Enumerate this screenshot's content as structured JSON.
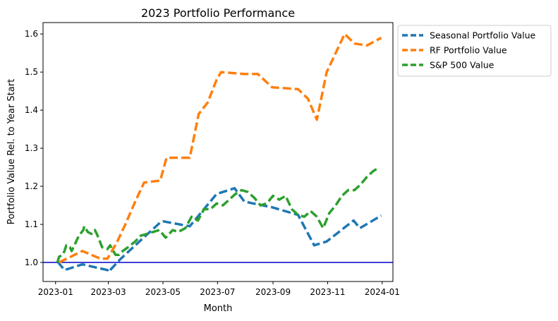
{
  "chart_data": {
    "type": "line",
    "title": "2023 Portfolio Performance",
    "xlabel": "Month",
    "ylabel": "Portfolio Value Rel. to Year Start",
    "x_ticks": [
      "2023-01",
      "2023-03",
      "2023-05",
      "2023-07",
      "2023-09",
      "2023-11",
      "2024-01"
    ],
    "y_ticks": [
      "1.0",
      "1.1",
      "1.2",
      "1.3",
      "1.4",
      "1.5",
      "1.6"
    ],
    "ylim": [
      0.95,
      1.63
    ],
    "xlim": [
      "2022-12-18",
      "2024-01-13"
    ],
    "baseline": {
      "y": 1.0,
      "color": "#0000cc"
    },
    "legend_position": "outside top-right",
    "grid": false,
    "series": [
      {
        "name": "Seasonal Portfolio Value",
        "color": "#1f77b4",
        "style": "dashed",
        "points": [
          [
            "2023-01-03",
            1.0
          ],
          [
            "2023-01-04",
            1.0
          ],
          [
            "2023-01-11",
            0.98
          ],
          [
            "2023-01-31",
            0.995
          ],
          [
            "2023-02-28",
            0.98
          ],
          [
            "2023-03-01",
            0.975
          ],
          [
            "2023-03-15",
            1.01
          ],
          [
            "2023-03-31",
            1.045
          ],
          [
            "2023-04-28",
            1.105
          ],
          [
            "2023-05-01",
            1.108
          ],
          [
            "2023-05-31",
            1.095
          ],
          [
            "2023-06-30",
            1.18
          ],
          [
            "2023-07-20",
            1.195
          ],
          [
            "2023-07-31",
            1.16
          ],
          [
            "2023-08-10",
            1.155
          ],
          [
            "2023-08-31",
            1.145
          ],
          [
            "2023-09-29",
            1.125
          ],
          [
            "2023-10-17",
            1.045
          ],
          [
            "2023-10-31",
            1.055
          ],
          [
            "2023-11-30",
            1.11
          ],
          [
            "2023-12-07",
            1.09
          ],
          [
            "2023-12-31",
            1.123
          ]
        ]
      },
      {
        "name": "RF Portfolio Value",
        "color": "#ff7f0e",
        "style": "dashed",
        "points": [
          [
            "2023-01-05",
            1.0
          ],
          [
            "2023-01-31",
            1.03
          ],
          [
            "2023-02-20",
            1.01
          ],
          [
            "2023-02-28",
            1.01
          ],
          [
            "2023-03-10",
            1.05
          ],
          [
            "2023-03-20",
            1.1
          ],
          [
            "2023-03-31",
            1.16
          ],
          [
            "2023-04-10",
            1.21
          ],
          [
            "2023-04-28",
            1.215
          ],
          [
            "2023-05-05",
            1.275
          ],
          [
            "2023-05-31",
            1.275
          ],
          [
            "2023-06-10",
            1.39
          ],
          [
            "2023-06-20",
            1.42
          ],
          [
            "2023-06-30",
            1.48
          ],
          [
            "2023-07-05",
            1.5
          ],
          [
            "2023-07-31",
            1.495
          ],
          [
            "2023-08-15",
            1.495
          ],
          [
            "2023-08-31",
            1.46
          ],
          [
            "2023-09-29",
            1.455
          ],
          [
            "2023-10-10",
            1.43
          ],
          [
            "2023-10-20",
            1.375
          ],
          [
            "2023-10-31",
            1.5
          ],
          [
            "2023-11-20",
            1.6
          ],
          [
            "2023-12-01",
            1.575
          ],
          [
            "2023-12-15",
            1.57
          ],
          [
            "2023-12-31",
            1.59
          ]
        ]
      },
      {
        "name": "S&P 500 Value",
        "color": "#2ca02c",
        "style": "dashed",
        "points": [
          [
            "2023-01-03",
            1.0
          ],
          [
            "2023-01-05",
            1.015
          ],
          [
            "2023-01-09",
            1.02
          ],
          [
            "2023-01-11",
            1.03
          ],
          [
            "2023-01-13",
            1.045
          ],
          [
            "2023-01-17",
            1.04
          ],
          [
            "2023-01-19",
            1.03
          ],
          [
            "2023-01-23",
            1.05
          ],
          [
            "2023-01-27",
            1.07
          ],
          [
            "2023-02-01",
            1.085
          ],
          [
            "2023-02-02",
            1.095
          ],
          [
            "2023-02-06",
            1.08
          ],
          [
            "2023-02-10",
            1.075
          ],
          [
            "2023-02-14",
            1.085
          ],
          [
            "2023-02-17",
            1.07
          ],
          [
            "2023-02-22",
            1.04
          ],
          [
            "2023-02-28",
            1.035
          ],
          [
            "2023-03-03",
            1.045
          ],
          [
            "2023-03-09",
            1.02
          ],
          [
            "2023-03-13",
            1.02
          ],
          [
            "2023-03-17",
            1.03
          ],
          [
            "2023-03-23",
            1.04
          ],
          [
            "2023-03-31",
            1.055
          ],
          [
            "2023-04-06",
            1.07
          ],
          [
            "2023-04-13",
            1.075
          ],
          [
            "2023-04-20",
            1.08
          ],
          [
            "2023-04-27",
            1.085
          ],
          [
            "2023-05-04",
            1.065
          ],
          [
            "2023-05-12",
            1.085
          ],
          [
            "2023-05-18",
            1.08
          ],
          [
            "2023-05-26",
            1.09
          ],
          [
            "2023-06-02",
            1.12
          ],
          [
            "2023-06-09",
            1.11
          ],
          [
            "2023-06-16",
            1.14
          ],
          [
            "2023-06-23",
            1.14
          ],
          [
            "2023-06-30",
            1.155
          ],
          [
            "2023-07-07",
            1.15
          ],
          [
            "2023-07-14",
            1.165
          ],
          [
            "2023-07-21",
            1.18
          ],
          [
            "2023-07-28",
            1.19
          ],
          [
            "2023-08-04",
            1.185
          ],
          [
            "2023-08-11",
            1.17
          ],
          [
            "2023-08-18",
            1.15
          ],
          [
            "2023-08-25",
            1.155
          ],
          [
            "2023-09-01",
            1.175
          ],
          [
            "2023-09-08",
            1.165
          ],
          [
            "2023-09-15",
            1.175
          ],
          [
            "2023-09-22",
            1.14
          ],
          [
            "2023-09-29",
            1.125
          ],
          [
            "2023-10-06",
            1.12
          ],
          [
            "2023-10-13",
            1.135
          ],
          [
            "2023-10-20",
            1.12
          ],
          [
            "2023-10-27",
            1.09
          ],
          [
            "2023-11-03",
            1.13
          ],
          [
            "2023-11-10",
            1.15
          ],
          [
            "2023-11-17",
            1.175
          ],
          [
            "2023-11-24",
            1.19
          ],
          [
            "2023-12-01",
            1.19
          ],
          [
            "2023-12-08",
            1.205
          ],
          [
            "2023-12-15",
            1.225
          ],
          [
            "2023-12-22",
            1.24
          ],
          [
            "2023-12-29",
            1.25
          ]
        ]
      }
    ]
  }
}
